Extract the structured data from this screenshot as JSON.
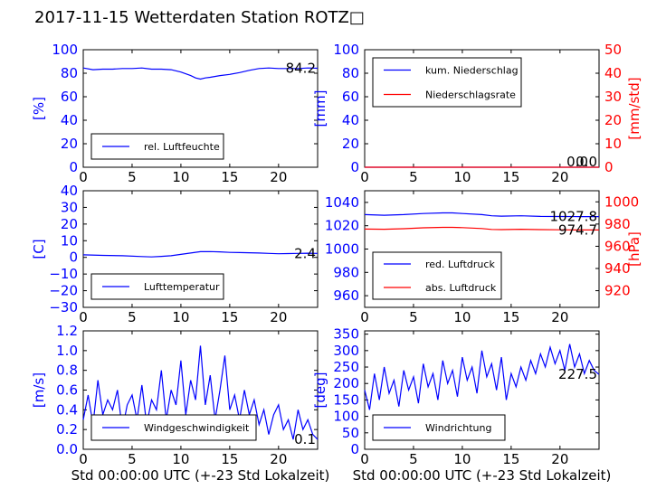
{
  "title": "2017-11-15 Wetterdaten Station ROTZ□",
  "chart_data": [
    {
      "type": "line",
      "panel": "top-left",
      "ylabel": "[%]",
      "ylim": [
        0,
        100
      ],
      "yticks": [
        "0",
        "20",
        "40",
        "60",
        "80",
        "100"
      ],
      "xlim": [
        0,
        24
      ],
      "xticks": [
        "0",
        "5",
        "10",
        "15",
        "20"
      ],
      "legend": [
        "rel. Luftfeuchte"
      ],
      "legend_loc": "lower-left",
      "annotations": [
        "84.2"
      ],
      "series": [
        {
          "name": "rel. Luftfeuchte",
          "color": "#0000ff",
          "axis": "left",
          "x": [
            0,
            1,
            2,
            3,
            4,
            5,
            6,
            7,
            8,
            9,
            10,
            11,
            11.5,
            12,
            12.5,
            13,
            14,
            15,
            16,
            17,
            18,
            19,
            20,
            21,
            22,
            23,
            24
          ],
          "y": [
            84.5,
            83,
            83.5,
            83.5,
            84,
            84,
            84.5,
            83.5,
            83.5,
            83,
            81,
            78,
            76,
            75,
            76,
            76.5,
            78,
            79,
            80.5,
            82.5,
            84,
            84.5,
            84,
            84,
            84,
            84.5,
            84.2
          ]
        }
      ]
    },
    {
      "type": "line",
      "panel": "top-right",
      "ylabel": "[mm]",
      "ylim": [
        0,
        100
      ],
      "yticks": [
        "0",
        "20",
        "40",
        "60",
        "80",
        "100"
      ],
      "ylabel_right": "[mm/std]",
      "ylim_right": [
        0,
        50
      ],
      "yticks_right": [
        "0",
        "10",
        "20",
        "30",
        "40",
        "50"
      ],
      "xlim": [
        0,
        24
      ],
      "xticks": [
        "0",
        "5",
        "10",
        "15",
        "20"
      ],
      "legend": [
        "kum. Niederschlag",
        "Niederschlagsrate"
      ],
      "legend_loc": "upper-left",
      "annotations": [
        "0.0",
        "0.0"
      ],
      "series": [
        {
          "name": "kum. Niederschlag",
          "color": "#0000ff",
          "axis": "left",
          "x": [
            0,
            24
          ],
          "y": [
            0,
            0
          ]
        },
        {
          "name": "Niederschlagsrate",
          "color": "#ff0000",
          "axis": "right",
          "x": [
            0,
            24
          ],
          "y": [
            0,
            0
          ]
        }
      ]
    },
    {
      "type": "line",
      "panel": "middle-left",
      "ylabel": "[C]",
      "ylim": [
        -30,
        40
      ],
      "yticks": [
        "−30",
        "−20",
        "−10",
        "0",
        "10",
        "20",
        "30",
        "40"
      ],
      "xlim": [
        0,
        24
      ],
      "xticks": [
        "0",
        "5",
        "10",
        "15",
        "20"
      ],
      "legend": [
        "Lufttemperatur"
      ],
      "legend_loc": "lower-left",
      "annotations": [
        "2.4"
      ],
      "series": [
        {
          "name": "Lufttemperatur",
          "color": "#0000ff",
          "axis": "left",
          "x": [
            0,
            2,
            4,
            6,
            7,
            8,
            9,
            10,
            11,
            12,
            13,
            14,
            15,
            16,
            17,
            18,
            19,
            20,
            21,
            22,
            23,
            24
          ],
          "y": [
            1.5,
            1.2,
            1.0,
            0.5,
            0.3,
            0.6,
            1.0,
            1.8,
            2.6,
            3.4,
            3.5,
            3.3,
            3.0,
            2.9,
            2.8,
            2.6,
            2.4,
            2.2,
            2.3,
            2.4,
            2.5,
            2.4
          ]
        }
      ]
    },
    {
      "type": "line",
      "panel": "middle-right",
      "ylabel": "",
      "ylim": [
        950,
        1050
      ],
      "yticks": [
        "960",
        "980",
        "1000",
        "1020",
        "1040"
      ],
      "ylabel_right": "[hPa]",
      "ylim_right": [
        905,
        1010
      ],
      "yticks_right": [
        "920",
        "940",
        "960",
        "980",
        "1000"
      ],
      "xlim": [
        0,
        24
      ],
      "xticks": [
        "0",
        "5",
        "10",
        "15",
        "20"
      ],
      "legend": [
        "red. Luftdruck",
        "abs. Luftdruck"
      ],
      "legend_loc": "lower-left",
      "annotations": [
        "1027.8",
        "974.7"
      ],
      "series": [
        {
          "name": "red. Luftdruck",
          "color": "#0000ff",
          "axis": "left",
          "x": [
            0,
            2,
            4,
            6,
            8,
            9,
            10,
            12,
            13,
            14,
            16,
            18,
            20,
            22,
            24
          ],
          "y": [
            1029.5,
            1029,
            1029.5,
            1030.5,
            1031,
            1031,
            1030.5,
            1029.5,
            1028.5,
            1028.2,
            1028.5,
            1028,
            1027.9,
            1027.8,
            1027.8
          ]
        },
        {
          "name": "abs. Luftdruck",
          "color": "#ff0000",
          "axis": "right",
          "x": [
            0,
            2,
            4,
            6,
            8,
            9,
            10,
            12,
            13,
            14,
            16,
            18,
            20,
            22,
            24
          ],
          "y": [
            975.5,
            975.3,
            975.8,
            976.6,
            977,
            977,
            976.8,
            976,
            975.2,
            975,
            975.3,
            975,
            974.8,
            974.7,
            974.7
          ]
        }
      ]
    },
    {
      "type": "line",
      "panel": "bottom-left",
      "ylabel": "[m/s]",
      "ylim": [
        0,
        1.2
      ],
      "yticks": [
        "0.0",
        "0.2",
        "0.4",
        "0.6",
        "0.8",
        "1.0",
        "1.2"
      ],
      "xlim": [
        0,
        24
      ],
      "xticks": [
        "0",
        "5",
        "10",
        "15",
        "20"
      ],
      "xlabel": "Std 00:00:00 UTC (+-23 Std Lokalzeit)",
      "legend": [
        "Windgeschwindigkeit"
      ],
      "legend_loc": "lower-center",
      "annotations": [
        "0.1"
      ],
      "series": [
        {
          "name": "Windgeschwindigkeit",
          "color": "#0000ff",
          "axis": "left",
          "x": [
            0,
            0.5,
            1,
            1.5,
            2,
            2.5,
            3,
            3.5,
            4,
            4.5,
            5,
            5.5,
            6,
            6.5,
            7,
            7.5,
            8,
            8.5,
            9,
            9.5,
            10,
            10.5,
            11,
            11.5,
            12,
            12.5,
            13,
            13.5,
            14,
            14.5,
            15,
            15.5,
            16,
            16.5,
            17,
            17.5,
            18,
            18.5,
            19,
            19.5,
            20,
            20.5,
            21,
            21.5,
            22,
            22.5,
            23,
            23.5,
            24
          ],
          "y": [
            0.3,
            0.55,
            0.25,
            0.7,
            0.35,
            0.5,
            0.4,
            0.6,
            0.2,
            0.45,
            0.55,
            0.3,
            0.65,
            0.25,
            0.5,
            0.4,
            0.8,
            0.3,
            0.6,
            0.45,
            0.9,
            0.35,
            0.7,
            0.5,
            1.05,
            0.45,
            0.75,
            0.3,
            0.6,
            0.95,
            0.4,
            0.55,
            0.3,
            0.6,
            0.35,
            0.5,
            0.25,
            0.4,
            0.15,
            0.35,
            0.45,
            0.2,
            0.3,
            0.1,
            0.4,
            0.2,
            0.3,
            0.15,
            0.1
          ]
        }
      ]
    },
    {
      "type": "line",
      "panel": "bottom-right",
      "ylabel": "[deg]",
      "ylim": [
        0,
        360
      ],
      "yticks": [
        "0",
        "50",
        "100",
        "150",
        "200",
        "250",
        "300",
        "350"
      ],
      "xlim": [
        0,
        24
      ],
      "xticks": [
        "0",
        "5",
        "10",
        "15",
        "20"
      ],
      "xlabel": "Std 00:00:00 UTC (+-23 Std Lokalzeit)",
      "legend": [
        "Windrichtung"
      ],
      "legend_loc": "lower-left",
      "annotations": [
        "227.5"
      ],
      "series": [
        {
          "name": "Windrichtung",
          "color": "#0000ff",
          "axis": "left",
          "x": [
            0,
            0.5,
            1,
            1.5,
            2,
            2.5,
            3,
            3.5,
            4,
            4.5,
            5,
            5.5,
            6,
            6.5,
            7,
            7.5,
            8,
            8.5,
            9,
            9.5,
            10,
            10.5,
            11,
            11.5,
            12,
            12.5,
            13,
            13.5,
            14,
            14.5,
            15,
            15.5,
            16,
            16.5,
            17,
            17.5,
            18,
            18.5,
            19,
            19.5,
            20,
            20.5,
            21,
            21.5,
            22,
            22.5,
            23,
            23.5,
            24
          ],
          "y": [
            180,
            120,
            230,
            150,
            250,
            170,
            210,
            130,
            240,
            180,
            220,
            140,
            260,
            190,
            230,
            150,
            270,
            200,
            240,
            160,
            280,
            210,
            250,
            170,
            300,
            220,
            260,
            180,
            280,
            150,
            230,
            190,
            250,
            210,
            270,
            230,
            290,
            250,
            310,
            260,
            300,
            240,
            320,
            250,
            290,
            230,
            270,
            240,
            227.5
          ]
        }
      ]
    }
  ]
}
